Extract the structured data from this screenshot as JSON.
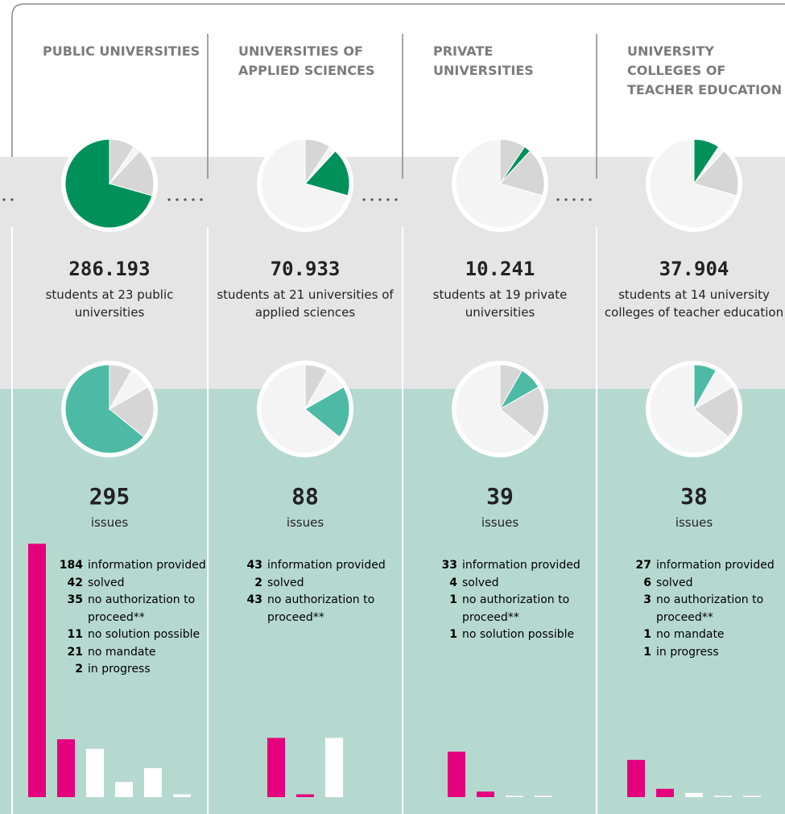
{
  "columns": [
    {
      "title": "PUBLIC UNIVERSITIES",
      "students": {
        "value": 286193,
        "label": "286.193"
      },
      "students_text": "students at 23 public universities",
      "issues": 295,
      "issues_text": "issues",
      "outcomes": [
        {
          "count": 184,
          "label": "information provided",
          "color": "#e4007d"
        },
        {
          "count": 42,
          "label": "solved",
          "color": "#e4007d"
        },
        {
          "count": 35,
          "label": "no authorization to proceed**",
          "color": "#ffffff"
        },
        {
          "count": 11,
          "label": "no solution possible",
          "color": "#ffffff"
        },
        {
          "count": 21,
          "label": "no mandate",
          "color": "#ffffff"
        },
        {
          "count": 2,
          "label": "in progress",
          "color": "#ffffff"
        }
      ]
    },
    {
      "title": "UNIVERSITIES OF APPLIED SCIENCES",
      "students": {
        "value": 70933,
        "label": "70.933"
      },
      "students_text": "students at 21 universities of applied sciences",
      "issues": 88,
      "issues_text": "issues",
      "outcomes": [
        {
          "count": 43,
          "label": "information provided",
          "color": "#e4007d"
        },
        {
          "count": 2,
          "label": "solved",
          "color": "#e4007d"
        },
        {
          "count": 43,
          "label": "no authorization to proceed**",
          "color": "#ffffff"
        }
      ]
    },
    {
      "title": "PRIVATE UNIVERSITIES",
      "students": {
        "value": 10241,
        "label": "10.241"
      },
      "students_text": "students at 19 private universities",
      "issues": 39,
      "issues_text": "issues",
      "outcomes": [
        {
          "count": 33,
          "label": "information provided",
          "color": "#e4007d"
        },
        {
          "count": 4,
          "label": "solved",
          "color": "#e4007d"
        },
        {
          "count": 1,
          "label": "no authorization to proceed**",
          "color": "#ffffff"
        },
        {
          "count": 1,
          "label": "no solution possible",
          "color": "#ffffff"
        }
      ]
    },
    {
      "title": "UNIVERSITY COLLEGES OF TEACHER EDUCATION",
      "students": {
        "value": 37904,
        "label": "37.904"
      },
      "students_text": "students at 14 university colleges of teacher education",
      "issues": 38,
      "issues_text": "issues",
      "outcomes": [
        {
          "count": 27,
          "label": "information provided",
          "color": "#e4007d"
        },
        {
          "count": 6,
          "label": "solved",
          "color": "#e4007d"
        },
        {
          "count": 3,
          "label": "no authorization to proceed**",
          "color": "#ffffff"
        },
        {
          "count": 1,
          "label": "no mandate",
          "color": "#ffffff"
        },
        {
          "count": 1,
          "label": "in progress",
          "color": "#ffffff"
        }
      ]
    }
  ]
}
